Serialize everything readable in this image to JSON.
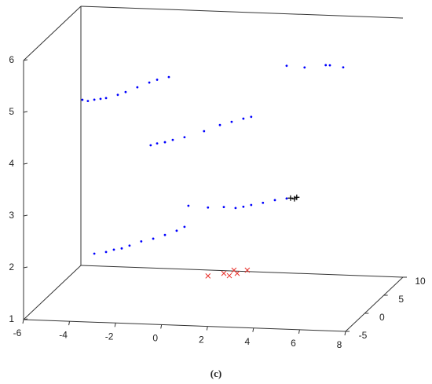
{
  "chart_data": {
    "type": "scatter3d",
    "caption": "(c)",
    "xlim": [
      -6,
      8
    ],
    "xticks": [
      -6,
      -4,
      -2,
      0,
      2,
      4,
      6,
      8
    ],
    "ylim": [
      -5,
      10
    ],
    "yticks": [
      -5,
      0,
      5,
      10
    ],
    "zlim": [
      1,
      6
    ],
    "zticks": [
      1,
      2,
      3,
      4,
      5,
      6
    ],
    "series": [
      {
        "color": "#0000ff",
        "marker": "dot",
        "x": [
          -4.69,
          -4.45,
          -4.17,
          -3.9,
          -3.66,
          -3.15,
          -2.81,
          -2.3,
          -1.78,
          -1.44,
          -0.93,
          -1.72,
          -1.44,
          -1.1,
          -0.76,
          -0.25,
          0.6,
          1.29,
          1.8,
          2.31,
          2.65,
          -0.08,
          0.77,
          1.46,
          1.97,
          2.31,
          2.65,
          3.16,
          3.68,
          4.19,
          -4.17,
          -3.66,
          -3.32,
          -2.98,
          -2.64,
          -2.13,
          -1.61,
          -1.1,
          -0.59,
          -0.25,
          4.19,
          4.97,
          5.89,
          6.07,
          6.65
        ],
        "y": [
          2.5,
          2.5,
          2.5,
          2.5,
          2.5,
          2.5,
          2.5,
          2.5,
          2.5,
          2.5,
          2.5,
          2.5,
          2.5,
          2.5,
          2.5,
          2.5,
          2.5,
          2.5,
          2.5,
          2.5,
          2.5,
          2.5,
          2.5,
          2.5,
          2.5,
          2.5,
          2.5,
          2.5,
          2.5,
          2.5,
          2.5,
          2.5,
          2.5,
          2.5,
          2.5,
          2.5,
          2.5,
          2.5,
          2.5,
          2.5,
          2.5,
          2.5,
          2.5,
          2.5,
          2.5
        ],
        "z": [
          4.74,
          4.72,
          4.75,
          4.77,
          4.79,
          4.86,
          4.92,
          5.02,
          5.12,
          5.18,
          5.24,
          3.91,
          3.95,
          3.98,
          4.03,
          4.09,
          4.22,
          4.35,
          4.42,
          4.49,
          4.53,
          2.77,
          2.75,
          2.77,
          2.76,
          2.79,
          2.83,
          2.88,
          2.94,
          2.98,
          1.78,
          1.82,
          1.87,
          1.9,
          1.96,
          2.05,
          2.11,
          2.19,
          2.28,
          2.36,
          5.54,
          5.52,
          5.58,
          5.58,
          5.55
        ]
      },
      {
        "color": "#e8302a",
        "marker": "x",
        "x": [
          0.77,
          1.46,
          1.7,
          1.9,
          2.04,
          2.48
        ],
        "y": [
          2.5,
          2.5,
          2.5,
          2.5,
          2.5,
          2.5
        ],
        "z": [
          1.43,
          1.49,
          1.45,
          1.56,
          1.5,
          1.57
        ]
      },
      {
        "color": "#000000",
        "marker": "plus",
        "x": [
          4.36,
          4.53,
          4.63
        ],
        "y": [
          2.5,
          2.5,
          2.5
        ],
        "z": [
          2.99,
          2.98,
          3.01
        ]
      }
    ]
  }
}
